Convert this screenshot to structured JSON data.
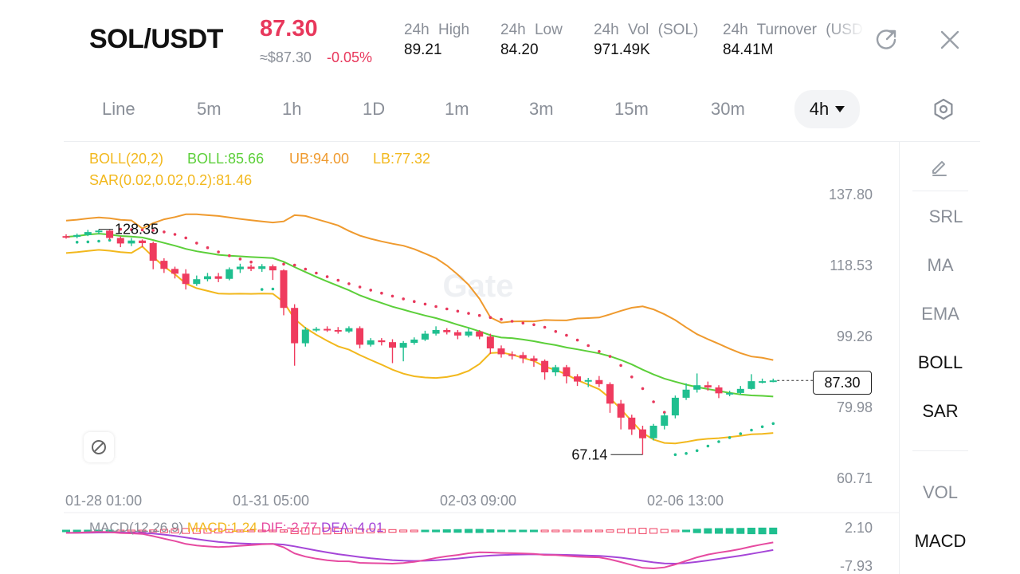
{
  "header": {
    "pair": "SOL/USDT",
    "price": "87.30",
    "approx_price": "≈$87.30",
    "change_pct": "-0.05%",
    "stats": [
      {
        "label": "24h High",
        "value": "89.21"
      },
      {
        "label": "24h Low",
        "value": "84.20"
      },
      {
        "label": "24h Vol (SOL)",
        "value": "971.49K"
      },
      {
        "label": "24h Turnover (USD",
        "value": "84.41M"
      }
    ],
    "share_icon": "share-icon",
    "close_icon": "close-icon"
  },
  "timeframes": {
    "items": [
      "Line",
      "5m",
      "1h",
      "1D",
      "1m",
      "3m",
      "15m",
      "30m"
    ],
    "selected": "4h",
    "settings_icon": "settings-hexagon-icon"
  },
  "indicators": {
    "boll_params": "BOLL(20,2)",
    "boll_value": "BOLL:85.66",
    "ub_value": "UB:94.00",
    "lb_value": "LB:77.32",
    "sar_value": "SAR(0.02,0.02,0.2):81.46",
    "macd_params": "MACD(12,26,9)",
    "macd_value": "MACD:1.24",
    "dif_value": "DIF:-2.77",
    "dea_value": "DEA:-4.01"
  },
  "colors": {
    "up": "#1fbf8f",
    "down": "#ef3b5e",
    "boll_mid": "#5ccf3a",
    "boll_ub": "#ef9a2e",
    "boll_lb": "#f2b81d",
    "sar": "#e8385c",
    "dif": "#e64aa0",
    "dea": "#a546d8"
  },
  "chart_data": {
    "type": "candlestick",
    "y_axis_labels": [
      "137.80",
      "118.53",
      "99.26",
      "79.98",
      "60.71"
    ],
    "ylim": [
      60.71,
      137.8
    ],
    "x_axis_labels": [
      "01-28 01:00",
      "01-31 05:00",
      "02-03 09:00",
      "02-06 13:00"
    ],
    "high_marker": "128.35",
    "low_marker": "67.14",
    "last_price_label": "87.30",
    "candles": [
      [
        126.5,
        126.3,
        127.0,
        125.8
      ],
      [
        126.3,
        126.8,
        127.2,
        125.9
      ],
      [
        126.8,
        127.6,
        128.2,
        126.5
      ],
      [
        127.6,
        128.0,
        128.35,
        127.0
      ],
      [
        128.0,
        126.0,
        128.2,
        125.5
      ],
      [
        126.0,
        124.5,
        126.5,
        123.5
      ],
      [
        124.5,
        125.3,
        126.0,
        123.8
      ],
      [
        125.3,
        124.6,
        125.6,
        123.5
      ],
      [
        124.6,
        119.8,
        125.0,
        117.5
      ],
      [
        119.8,
        117.6,
        120.5,
        116.5
      ],
      [
        117.6,
        116.3,
        118.2,
        115.0
      ],
      [
        116.3,
        113.5,
        117.5,
        112.0
      ],
      [
        113.5,
        114.8,
        115.8,
        113.0
      ],
      [
        114.8,
        115.6,
        116.5,
        114.2
      ],
      [
        115.6,
        114.9,
        116.5,
        114.0
      ],
      [
        114.9,
        117.5,
        118.0,
        114.5
      ],
      [
        117.5,
        118.2,
        119.0,
        116.5
      ],
      [
        118.2,
        117.6,
        118.8,
        117.0
      ],
      [
        117.6,
        118.3,
        118.9,
        116.8
      ],
      [
        118.3,
        117.2,
        118.8,
        114.6
      ],
      [
        117.2,
        107.0,
        117.5,
        105.0
      ],
      [
        107.0,
        97.4,
        108.0,
        91.3
      ],
      [
        97.4,
        101.1,
        101.8,
        96.5
      ],
      [
        101.1,
        101.3,
        101.8,
        100.5
      ],
      [
        101.3,
        101.0,
        102.0,
        100.5
      ],
      [
        101.0,
        100.6,
        101.8,
        100.0
      ],
      [
        100.6,
        101.5,
        102.0,
        100.2
      ],
      [
        101.5,
        97.0,
        102.0,
        96.0
      ],
      [
        97.0,
        98.2,
        98.8,
        96.5
      ],
      [
        98.2,
        97.7,
        98.8,
        96.8
      ],
      [
        97.7,
        96.2,
        98.5,
        92.0
      ],
      [
        96.2,
        97.5,
        98.0,
        92.5
      ],
      [
        97.5,
        98.4,
        99.0,
        97.0
      ],
      [
        98.4,
        100.0,
        100.8,
        98.0
      ],
      [
        100.0,
        101.0,
        102.0,
        99.5
      ],
      [
        101.0,
        100.4,
        101.5,
        99.8
      ],
      [
        100.4,
        99.5,
        101.0,
        98.5
      ],
      [
        99.5,
        100.6,
        101.5,
        99.0
      ],
      [
        100.6,
        99.2,
        101.0,
        98.5
      ],
      [
        99.2,
        96.0,
        100.0,
        94.5
      ],
      [
        96.0,
        94.4,
        96.8,
        93.5
      ],
      [
        94.4,
        94.2,
        95.2,
        93.0
      ],
      [
        94.2,
        93.3,
        95.0,
        92.0
      ],
      [
        93.3,
        92.6,
        94.0,
        91.0
      ],
      [
        92.6,
        89.5,
        93.0,
        87.5
      ],
      [
        89.5,
        90.9,
        91.5,
        88.5
      ],
      [
        90.9,
        88.4,
        91.5,
        86.5
      ],
      [
        88.4,
        87.0,
        89.0,
        85.8
      ],
      [
        87.0,
        87.4,
        88.0,
        85.5
      ],
      [
        87.4,
        86.3,
        88.5,
        85.5
      ],
      [
        86.3,
        81.0,
        86.8,
        78.5
      ],
      [
        81.0,
        77.2,
        82.0,
        74.0
      ],
      [
        77.2,
        74.0,
        78.0,
        72.5
      ],
      [
        74.0,
        71.6,
        75.0,
        67.14
      ],
      [
        71.6,
        75.0,
        75.5,
        71.0
      ],
      [
        75.0,
        77.8,
        78.5,
        74.0
      ],
      [
        77.8,
        82.6,
        83.2,
        77.0
      ],
      [
        82.6,
        84.8,
        86.5,
        82.0
      ],
      [
        84.8,
        86.0,
        89.2,
        84.0
      ],
      [
        86.0,
        85.4,
        87.0,
        84.5
      ],
      [
        85.4,
        83.8,
        86.0,
        82.5
      ],
      [
        83.8,
        83.9,
        84.5,
        83.0
      ],
      [
        83.9,
        85.0,
        85.8,
        83.5
      ],
      [
        85.0,
        87.1,
        89.0,
        84.8
      ],
      [
        87.1,
        87.1,
        87.8,
        86.5
      ],
      [
        87.1,
        87.3,
        87.8,
        86.8
      ]
    ],
    "macd_y_axis_labels": [
      "2.10",
      "-7.93"
    ]
  },
  "side_panel": {
    "edit_icon": "edit-pencil-icon",
    "items": [
      "SRL",
      "MA",
      "EMA",
      "BOLL",
      "SAR"
    ],
    "active": [
      "BOLL",
      "SAR"
    ],
    "sub_items": [
      "VOL",
      "MACD"
    ],
    "sub_active": [
      "MACD"
    ]
  },
  "watermark": "Gate",
  "chart_tool_icon": "drawing-tool-icon"
}
